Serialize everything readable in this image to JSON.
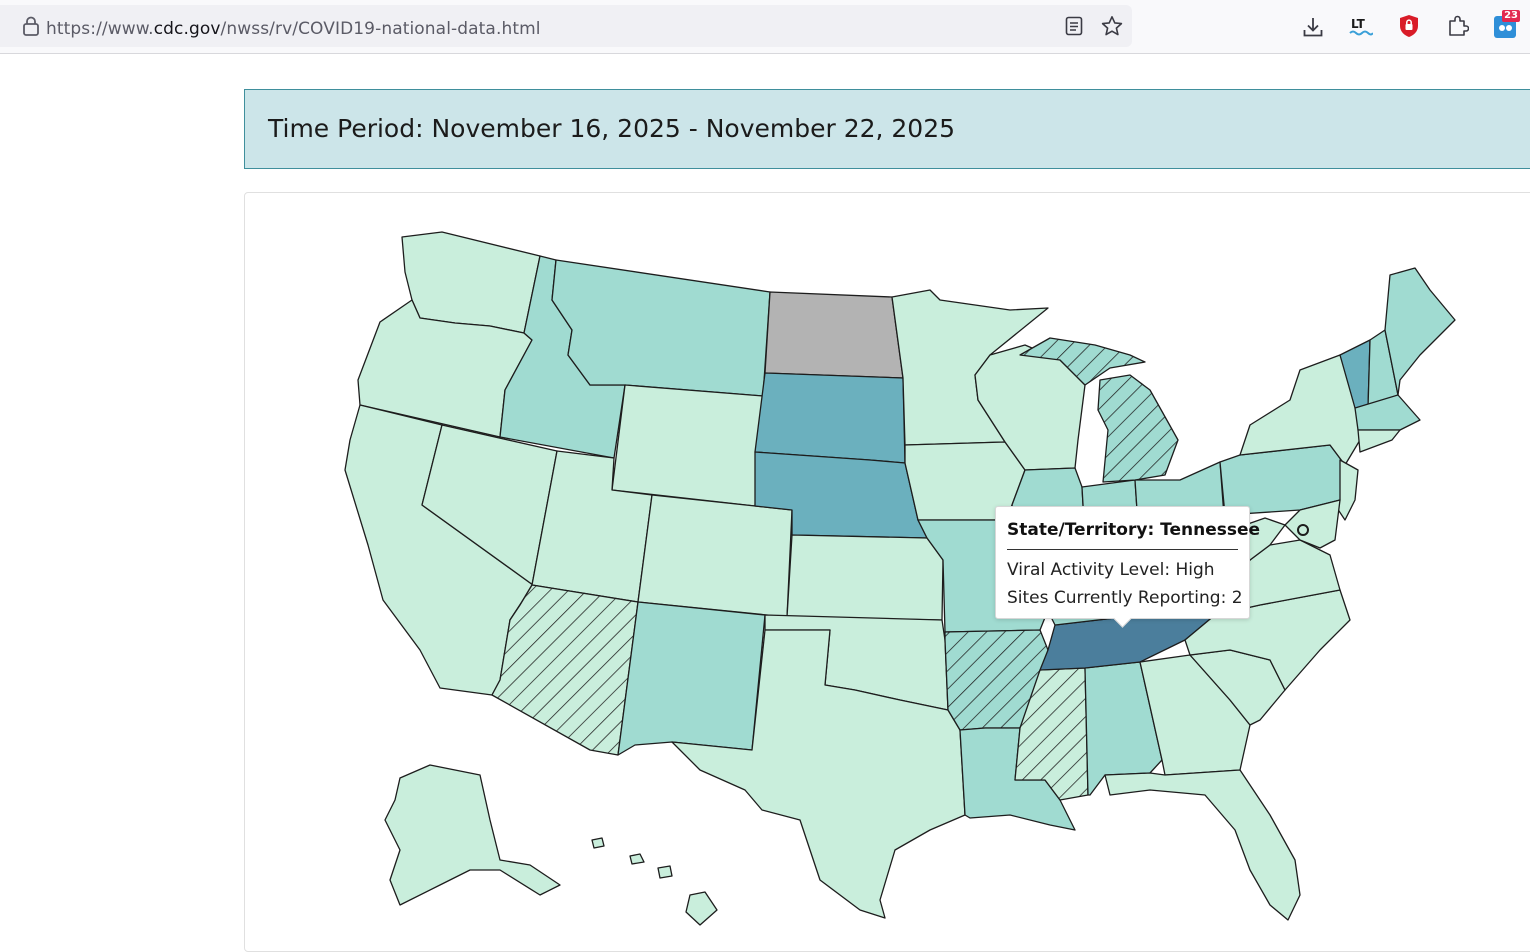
{
  "browser": {
    "url_scheme": "https://www.",
    "url_host": "cdc.gov",
    "url_path": "/nwss/rv/COVID19-national-data.html",
    "icons": [
      "lock-icon",
      "reader-view-icon",
      "bookmark-star-icon",
      "download-icon",
      "language-tool-icon",
      "ublock-shield-icon",
      "extensions-puzzle-icon",
      "extension-badge-icon"
    ],
    "extension_badge": "23"
  },
  "page": {
    "time_period": "Time Period: November 16, 2025 - November 22, 2025"
  },
  "map": {
    "colors": {
      "very_low": "#c9eedc",
      "low": "#a0dbd1",
      "moderate": "#6bb0be",
      "high": "#4b7e9c",
      "no_data": "#b3b3b3",
      "border": "#1d1d1d"
    },
    "hatched_states": [
      "Arizona",
      "Arkansas",
      "Mississippi",
      "Michigan"
    ],
    "highlighted_state": "Tennessee"
  },
  "tooltip": {
    "title": "State/Territory: Tennessee",
    "level_line": "Viral Activity Level: High",
    "sites_line": "Sites Currently Reporting: 2"
  }
}
